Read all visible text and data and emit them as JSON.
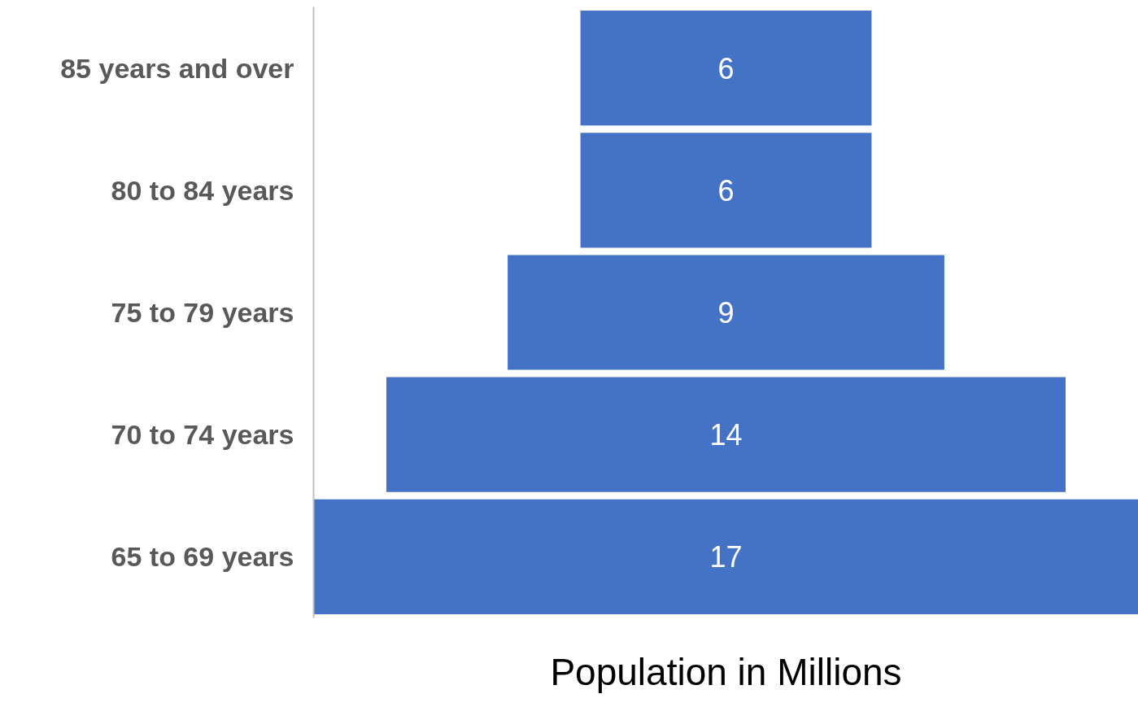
{
  "chart_data": {
    "type": "other",
    "xlabel": "Population in Millions",
    "categories": [
      "85 years and over",
      "80 to 84 years",
      "75 to 79 years",
      "70 to 74 years",
      "65 to 69 years"
    ],
    "values": [
      6,
      6,
      9,
      14,
      17
    ],
    "color": "#4472c4",
    "data_labels": true
  }
}
